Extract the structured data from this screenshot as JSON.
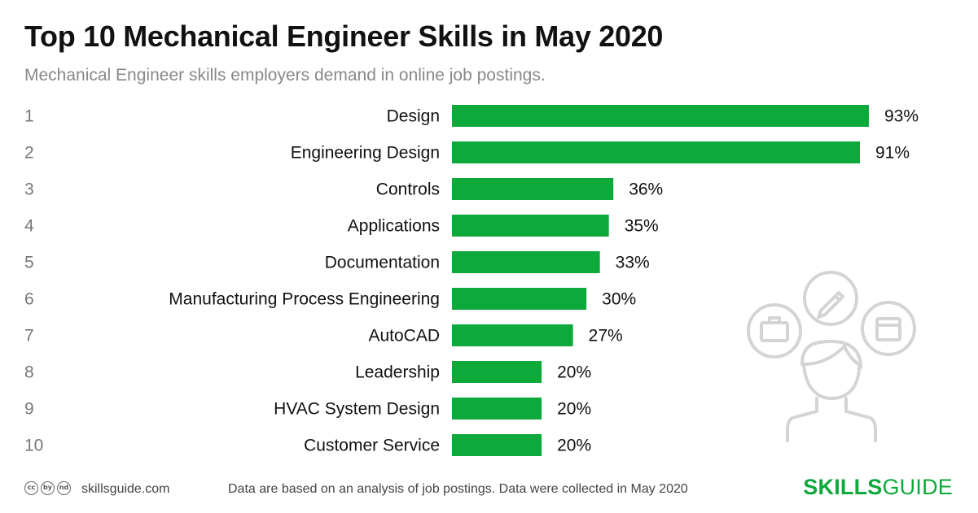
{
  "header": {
    "title": "Top 10 Mechanical Engineer Skills in May 2020",
    "subtitle": "Mechanical Engineer skills employers demand in online job postings."
  },
  "chart_data": {
    "type": "bar",
    "orientation": "horizontal",
    "value_suffix": "%",
    "xlim": [
      0,
      93
    ],
    "grid": false,
    "bar_color": "#0ea93b",
    "ranks": [
      "1",
      "2",
      "3",
      "4",
      "5",
      "6",
      "7",
      "8",
      "9",
      "10"
    ],
    "categories": [
      "Design",
      "Engineering Design",
      "Controls",
      "Applications",
      "Documentation",
      "Manufacturing Process Engineering",
      "AutoCAD",
      "Leadership",
      "HVAC System Design",
      "Customer Service"
    ],
    "values": [
      93,
      91,
      36,
      35,
      33,
      30,
      27,
      20,
      20,
      20
    ]
  },
  "illustration": {
    "icons": [
      "briefcase-icon",
      "pencil-icon",
      "window-icon",
      "person-icon"
    ],
    "stroke_color": "#d4d4d4"
  },
  "footer": {
    "license_icons": [
      "cc",
      "by",
      "nd"
    ],
    "site": "skillsguide.com",
    "note": "Data are based on an analysis of job postings. Data were collected in May 2020",
    "brand_bold": "SKILLS",
    "brand_light": "GUIDE"
  },
  "colors": {
    "accent": "#0ea93b",
    "title": "#111111",
    "subtitle": "#888888",
    "rank": "#777777"
  }
}
